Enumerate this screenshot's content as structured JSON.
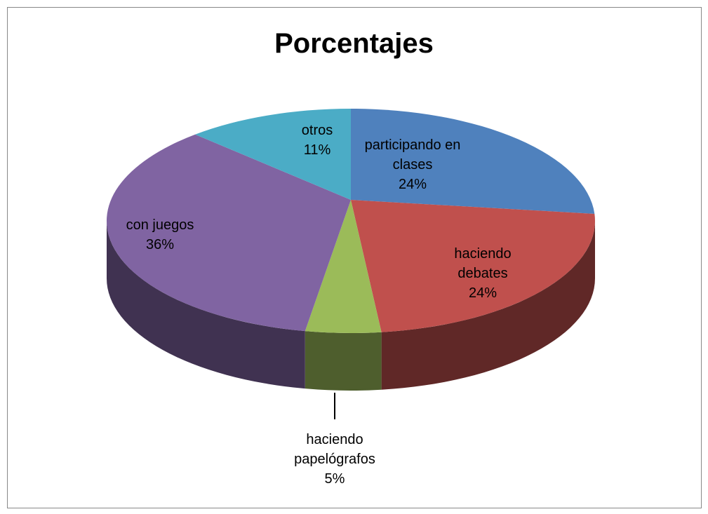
{
  "chart_data": {
    "type": "pie",
    "title": "Porcentajes",
    "categories": [
      "participando en clases",
      "haciendo debates",
      "haciendo papelógrafos",
      "con juegos",
      "otros"
    ],
    "values": [
      24,
      24,
      5,
      36,
      11
    ],
    "value_labels": [
      "24%",
      "24%",
      "5%",
      "36%",
      "11%"
    ],
    "colors": [
      "#4f81bd",
      "#c0504d",
      "#9bbb59",
      "#8064a2",
      "#4bacc6"
    ]
  }
}
